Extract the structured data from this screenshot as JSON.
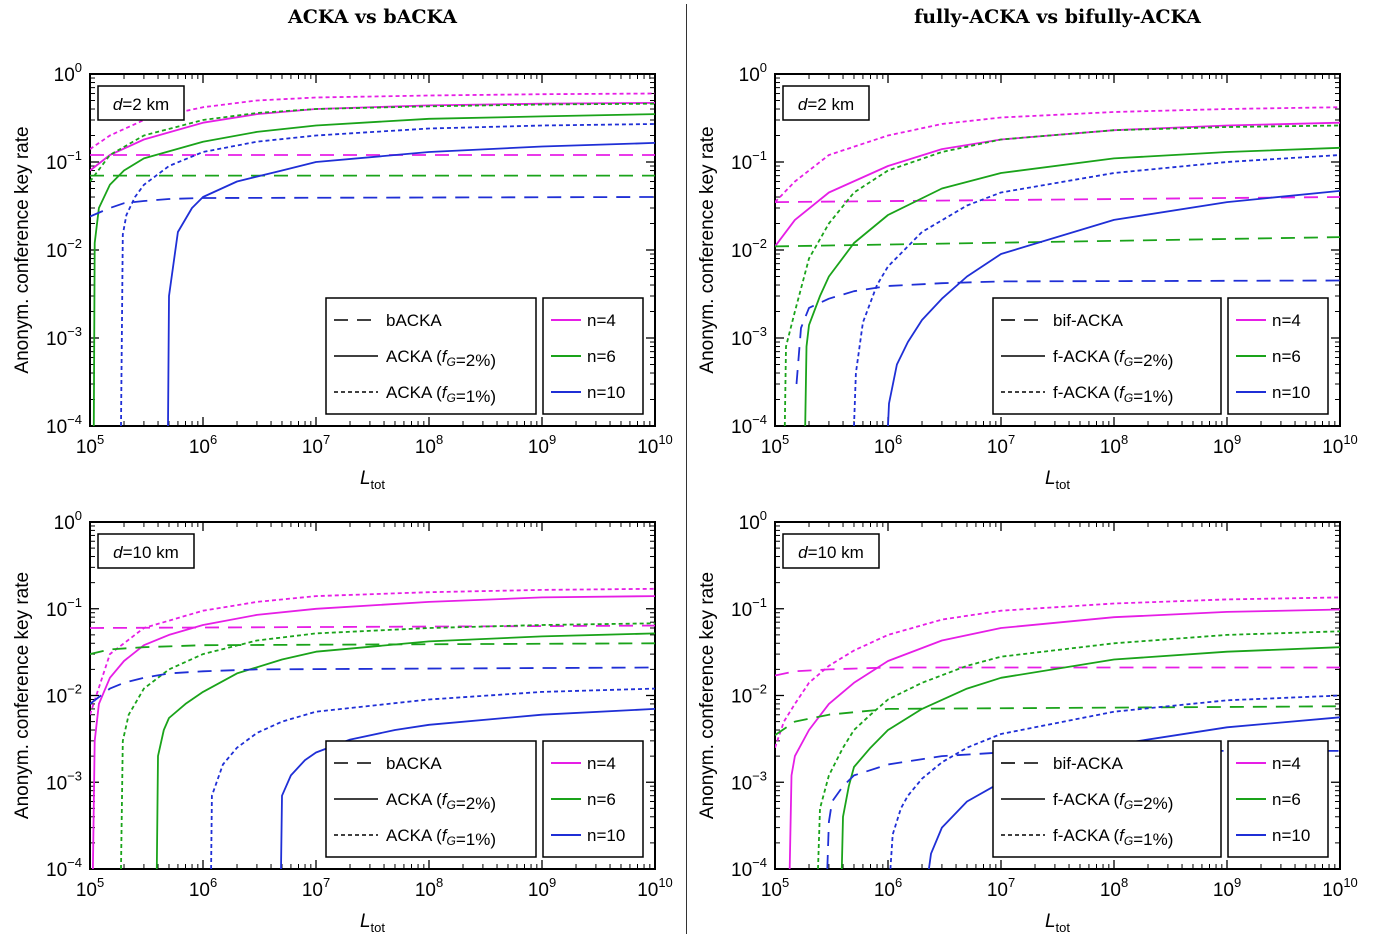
{
  "column_titles": [
    "ACKA vs bACKA",
    "fully-ACKA vs bifully-ACKA"
  ],
  "colors": {
    "n4": "#e61ee6",
    "n6": "#1aa31a",
    "n10": "#1f2fd6"
  },
  "chart_data": [
    {
      "type": "line",
      "id": "acka-d2",
      "xlabel": "L_tot",
      "ylabel": "Anonym. conference key rate",
      "xscale": "log",
      "yscale": "log",
      "xlim": [
        100000,
        10000000000
      ],
      "ylim": [
        0.0001,
        1
      ],
      "annotation": "d=2 km",
      "style_legend": [
        "bACKA",
        "ACKA (f_G=2%)",
        "ACKA (f_G=1%)"
      ],
      "n_legend": [
        "n=4",
        "n=6",
        "n=10"
      ],
      "series": [
        {
          "n": "n=4",
          "style": "dashed",
          "x": [
            100000,
            10000000000
          ],
          "y": [
            0.12,
            0.12
          ]
        },
        {
          "n": "n=4",
          "style": "solid",
          "x": [
            100000,
            150000,
            300000,
            1000000,
            3000000,
            10000000,
            100000000,
            1000000000,
            10000000000
          ],
          "y": [
            0.08,
            0.12,
            0.18,
            0.28,
            0.35,
            0.4,
            0.44,
            0.46,
            0.47
          ]
        },
        {
          "n": "n=4",
          "style": "dotted",
          "x": [
            100000,
            150000,
            300000,
            1000000,
            3000000,
            10000000,
            100000000,
            1000000000,
            10000000000
          ],
          "y": [
            0.14,
            0.2,
            0.3,
            0.42,
            0.5,
            0.54,
            0.57,
            0.59,
            0.6
          ]
        },
        {
          "n": "n=6",
          "style": "dashed",
          "x": [
            100000,
            10000000000
          ],
          "y": [
            0.07,
            0.07
          ]
        },
        {
          "n": "n=6",
          "style": "solid",
          "x": [
            108000,
            110000,
            120000,
            150000,
            200000,
            300000,
            1000000,
            3000000,
            10000000,
            100000000,
            1000000000,
            10000000000
          ],
          "y": [
            0.0001,
            0.012,
            0.03,
            0.055,
            0.08,
            0.11,
            0.17,
            0.22,
            0.26,
            0.31,
            0.33,
            0.35
          ]
        },
        {
          "n": "n=6",
          "style": "dotted",
          "x": [
            100000,
            150000,
            300000,
            1000000,
            3000000,
            10000000,
            100000000,
            1000000000,
            10000000000
          ],
          "y": [
            0.06,
            0.12,
            0.2,
            0.3,
            0.36,
            0.4,
            0.43,
            0.45,
            0.46
          ]
        },
        {
          "n": "n=10",
          "style": "dashed",
          "x": [
            100000,
            150000,
            200000,
            300000,
            500000,
            1000000,
            10000000000
          ],
          "y": [
            0.024,
            0.03,
            0.034,
            0.036,
            0.038,
            0.039,
            0.04
          ]
        },
        {
          "n": "n=10",
          "style": "solid",
          "x": [
            490000,
            500000,
            600000,
            800000,
            1000000,
            2000000,
            5000000,
            10000000,
            100000000,
            1000000000,
            10000000000
          ],
          "y": [
            0.0001,
            0.003,
            0.016,
            0.03,
            0.04,
            0.06,
            0.08,
            0.1,
            0.13,
            0.15,
            0.165
          ]
        },
        {
          "n": "n=10",
          "style": "dotted",
          "x": [
            188000,
            195000,
            210000,
            250000,
            300000,
            500000,
            1000000,
            3000000,
            10000000,
            100000000,
            1000000000,
            10000000000
          ],
          "y": [
            0.0001,
            0.015,
            0.025,
            0.04,
            0.055,
            0.09,
            0.13,
            0.17,
            0.2,
            0.24,
            0.26,
            0.27
          ]
        }
      ]
    },
    {
      "type": "line",
      "id": "facka-d2",
      "xlabel": "L_tot",
      "ylabel": "Anonym. conference key rate",
      "xscale": "log",
      "yscale": "log",
      "xlim": [
        100000,
        10000000000
      ],
      "ylim": [
        0.0001,
        1
      ],
      "annotation": "d=2 km",
      "style_legend": [
        "bif-ACKA",
        "f-ACKA (f_G=2%)",
        "f-ACKA (f_G=1%)"
      ],
      "n_legend": [
        "n=4",
        "n=6",
        "n=10"
      ],
      "series": [
        {
          "n": "n=4",
          "style": "dashed",
          "x": [
            100000,
            10000000000
          ],
          "y": [
            0.035,
            0.04
          ]
        },
        {
          "n": "n=4",
          "style": "solid",
          "x": [
            100000,
            150000,
            300000,
            1000000,
            3000000,
            10000000,
            100000000,
            1000000000,
            10000000000
          ],
          "y": [
            0.011,
            0.022,
            0.045,
            0.09,
            0.14,
            0.18,
            0.23,
            0.26,
            0.28
          ]
        },
        {
          "n": "n=4",
          "style": "dotted",
          "x": [
            100000,
            150000,
            300000,
            1000000,
            3000000,
            10000000,
            100000000,
            1000000000,
            10000000000
          ],
          "y": [
            0.035,
            0.06,
            0.12,
            0.2,
            0.27,
            0.32,
            0.37,
            0.4,
            0.42
          ]
        },
        {
          "n": "n=6",
          "style": "dashed",
          "x": [
            100000,
            10000000000
          ],
          "y": [
            0.011,
            0.014
          ]
        },
        {
          "n": "n=6",
          "style": "solid",
          "x": [
            185000,
            190000,
            200000,
            250000,
            300000,
            500000,
            1000000,
            3000000,
            10000000,
            100000000,
            1000000000,
            10000000000
          ],
          "y": [
            0.0001,
            0.0008,
            0.0014,
            0.003,
            0.005,
            0.012,
            0.025,
            0.05,
            0.075,
            0.11,
            0.13,
            0.145
          ]
        },
        {
          "n": "n=6",
          "style": "dotted",
          "x": [
            122000,
            125000,
            150000,
            200000,
            300000,
            500000,
            1000000,
            3000000,
            10000000,
            100000000,
            1000000000,
            10000000000
          ],
          "y": [
            0.0001,
            0.0008,
            0.002,
            0.008,
            0.02,
            0.045,
            0.08,
            0.13,
            0.18,
            0.23,
            0.25,
            0.26
          ]
        },
        {
          "n": "n=10",
          "style": "dashed",
          "x": [
            155000,
            170000,
            200000,
            300000,
            500000,
            1000000,
            3000000,
            10000000,
            10000000000
          ],
          "y": [
            0.0003,
            0.0013,
            0.0022,
            0.0028,
            0.0034,
            0.0039,
            0.0042,
            0.0044,
            0.0045
          ]
        },
        {
          "n": "n=10",
          "style": "solid",
          "x": [
            1000000,
            1020000,
            1200000,
            1500000,
            2000000,
            3000000,
            5000000,
            10000000,
            100000000,
            1000000000,
            10000000000
          ],
          "y": [
            0.0001,
            0.00018,
            0.0005,
            0.0009,
            0.0016,
            0.0028,
            0.005,
            0.009,
            0.022,
            0.035,
            0.047
          ]
        },
        {
          "n": "n=10",
          "style": "dotted",
          "x": [
            500000,
            520000,
            600000,
            800000,
            1000000,
            2000000,
            5000000,
            10000000,
            100000000,
            1000000000,
            10000000000
          ],
          "y": [
            0.0001,
            0.0004,
            0.0015,
            0.004,
            0.0065,
            0.016,
            0.032,
            0.045,
            0.075,
            0.1,
            0.12
          ]
        }
      ]
    },
    {
      "type": "line",
      "id": "acka-d10",
      "xlabel": "L_tot",
      "ylabel": "Anonym. conference key rate",
      "xscale": "log",
      "yscale": "log",
      "xlim": [
        100000,
        10000000000
      ],
      "ylim": [
        0.0001,
        1
      ],
      "annotation": "d=10 km",
      "style_legend": [
        "bACKA",
        "ACKA (f_G=2%)",
        "ACKA (f_G=1%)"
      ],
      "n_legend": [
        "n=4",
        "n=6",
        "n=10"
      ],
      "series": [
        {
          "n": "n=4",
          "style": "dashed",
          "x": [
            100000,
            10000000000
          ],
          "y": [
            0.06,
            0.064
          ]
        },
        {
          "n": "n=4",
          "style": "solid",
          "x": [
            106000,
            110000,
            120000,
            150000,
            200000,
            300000,
            500000,
            1000000,
            3000000,
            10000000,
            100000000,
            1000000000,
            10000000000
          ],
          "y": [
            0.0001,
            0.003,
            0.008,
            0.016,
            0.025,
            0.038,
            0.05,
            0.065,
            0.085,
            0.1,
            0.12,
            0.135,
            0.14
          ]
        },
        {
          "n": "n=4",
          "style": "dotted",
          "x": [
            100000,
            150000,
            300000,
            1000000,
            3000000,
            10000000,
            100000000,
            1000000000,
            10000000000
          ],
          "y": [
            0.006,
            0.03,
            0.06,
            0.095,
            0.12,
            0.14,
            0.155,
            0.165,
            0.17
          ]
        },
        {
          "n": "n=6",
          "style": "dashed",
          "x": [
            100000,
            150000,
            300000,
            1000000,
            10000000000
          ],
          "y": [
            0.03,
            0.034,
            0.036,
            0.038,
            0.04
          ]
        },
        {
          "n": "n=6",
          "style": "solid",
          "x": [
            390000,
            400000,
            450000,
            500000,
            700000,
            1000000,
            2000000,
            5000000,
            10000000,
            100000000,
            1000000000,
            10000000000
          ],
          "y": [
            0.0001,
            0.002,
            0.004,
            0.0055,
            0.008,
            0.011,
            0.018,
            0.026,
            0.032,
            0.042,
            0.048,
            0.052
          ]
        },
        {
          "n": "n=6",
          "style": "dotted",
          "x": [
            188000,
            195000,
            220000,
            300000,
            500000,
            1000000,
            3000000,
            10000000,
            100000000,
            1000000000,
            10000000000
          ],
          "y": [
            0.0001,
            0.003,
            0.006,
            0.012,
            0.02,
            0.03,
            0.043,
            0.052,
            0.06,
            0.065,
            0.068
          ]
        },
        {
          "n": "n=10",
          "style": "dashed",
          "x": [
            100000,
            150000,
            200000,
            300000,
            500000,
            1000000,
            3000000,
            10000000000
          ],
          "y": [
            0.008,
            0.012,
            0.014,
            0.016,
            0.018,
            0.019,
            0.02,
            0.021
          ]
        },
        {
          "n": "n=10",
          "style": "solid",
          "x": [
            4900000,
            5000000,
            6000000,
            8000000,
            10000000,
            20000000,
            50000000,
            100000000,
            1000000000,
            10000000000
          ],
          "y": [
            0.0001,
            0.0007,
            0.0012,
            0.0018,
            0.0022,
            0.0031,
            0.004,
            0.0046,
            0.006,
            0.007
          ]
        },
        {
          "n": "n=10",
          "style": "dotted",
          "x": [
            1180000,
            1200000,
            1500000,
            2000000,
            3000000,
            5000000,
            10000000,
            100000000,
            1000000000,
            10000000000
          ],
          "y": [
            0.0001,
            0.0007,
            0.0016,
            0.0025,
            0.0037,
            0.005,
            0.0065,
            0.009,
            0.011,
            0.012
          ]
        }
      ]
    },
    {
      "type": "line",
      "id": "facka-d10",
      "xlabel": "L_tot",
      "ylabel": "Anonym. conference key rate",
      "xscale": "log",
      "yscale": "log",
      "xlim": [
        100000,
        10000000000
      ],
      "ylim": [
        0.0001,
        1
      ],
      "annotation": "d=10 km",
      "style_legend": [
        "bif-ACKA",
        "f-ACKA (f_G=2%)",
        "f-ACKA (f_G=1%)"
      ],
      "n_legend": [
        "n=4",
        "n=6",
        "n=10"
      ],
      "series": [
        {
          "n": "n=4",
          "style": "dashed",
          "x": [
            100000,
            150000,
            300000,
            1000000,
            10000000000
          ],
          "y": [
            0.017,
            0.019,
            0.02,
            0.021,
            0.021
          ]
        },
        {
          "n": "n=4",
          "style": "solid",
          "x": [
            135000,
            140000,
            150000,
            200000,
            300000,
            500000,
            1000000,
            3000000,
            10000000,
            100000000,
            1000000000,
            10000000000
          ],
          "y": [
            0.0001,
            0.0012,
            0.002,
            0.004,
            0.008,
            0.014,
            0.025,
            0.043,
            0.06,
            0.08,
            0.092,
            0.098
          ]
        },
        {
          "n": "n=4",
          "style": "dotted",
          "x": [
            100000,
            120000,
            150000,
            200000,
            300000,
            500000,
            1000000,
            3000000,
            10000000,
            100000000,
            1000000000,
            10000000000
          ],
          "y": [
            0.0025,
            0.005,
            0.008,
            0.014,
            0.022,
            0.033,
            0.05,
            0.075,
            0.095,
            0.115,
            0.128,
            0.135
          ]
        },
        {
          "n": "n=6",
          "style": "dashed",
          "x": [
            100000,
            150000,
            300000,
            1000000,
            10000000000
          ],
          "y": [
            0.0035,
            0.005,
            0.006,
            0.007,
            0.0075
          ]
        },
        {
          "n": "n=6",
          "style": "solid",
          "x": [
            390000,
            400000,
            450000,
            500000,
            700000,
            1000000,
            2000000,
            5000000,
            10000000,
            100000000,
            1000000000,
            10000000000
          ],
          "y": [
            0.0001,
            0.0004,
            0.0009,
            0.0015,
            0.0025,
            0.004,
            0.007,
            0.012,
            0.016,
            0.026,
            0.032,
            0.036
          ]
        },
        {
          "n": "n=6",
          "style": "dotted",
          "x": [
            240000,
            250000,
            300000,
            400000,
            500000,
            700000,
            1000000,
            2000000,
            5000000,
            10000000,
            100000000,
            1000000000,
            10000000000
          ],
          "y": [
            0.0001,
            0.0005,
            0.0012,
            0.0025,
            0.004,
            0.006,
            0.009,
            0.014,
            0.022,
            0.028,
            0.04,
            0.05,
            0.055
          ]
        },
        {
          "n": "n=10",
          "style": "dashed",
          "x": [
            290000,
            300000,
            320000,
            400000,
            500000,
            1000000,
            3000000,
            10000000,
            100000000,
            10000000000
          ],
          "y": [
            0.0001,
            0.00035,
            0.0006,
            0.0009,
            0.0012,
            0.0016,
            0.002,
            0.0022,
            0.0023,
            0.0023
          ]
        },
        {
          "n": "n=10",
          "style": "solid",
          "x": [
            2300000,
            2400000,
            3000000,
            5000000,
            10000000,
            30000000,
            100000000,
            1000000000,
            10000000000
          ],
          "y": [
            0.0001,
            0.00015,
            0.0003,
            0.0006,
            0.001,
            0.0018,
            0.0027,
            0.0043,
            0.0056
          ]
        },
        {
          "n": "n=10",
          "style": "dotted",
          "x": [
            1050000,
            1100000,
            1300000,
            1500000,
            2000000,
            3000000,
            5000000,
            10000000,
            100000000,
            1000000000,
            10000000000
          ],
          "y": [
            0.0001,
            0.00025,
            0.0005,
            0.0007,
            0.0011,
            0.0017,
            0.0025,
            0.0036,
            0.0065,
            0.0088,
            0.01
          ]
        }
      ]
    }
  ]
}
